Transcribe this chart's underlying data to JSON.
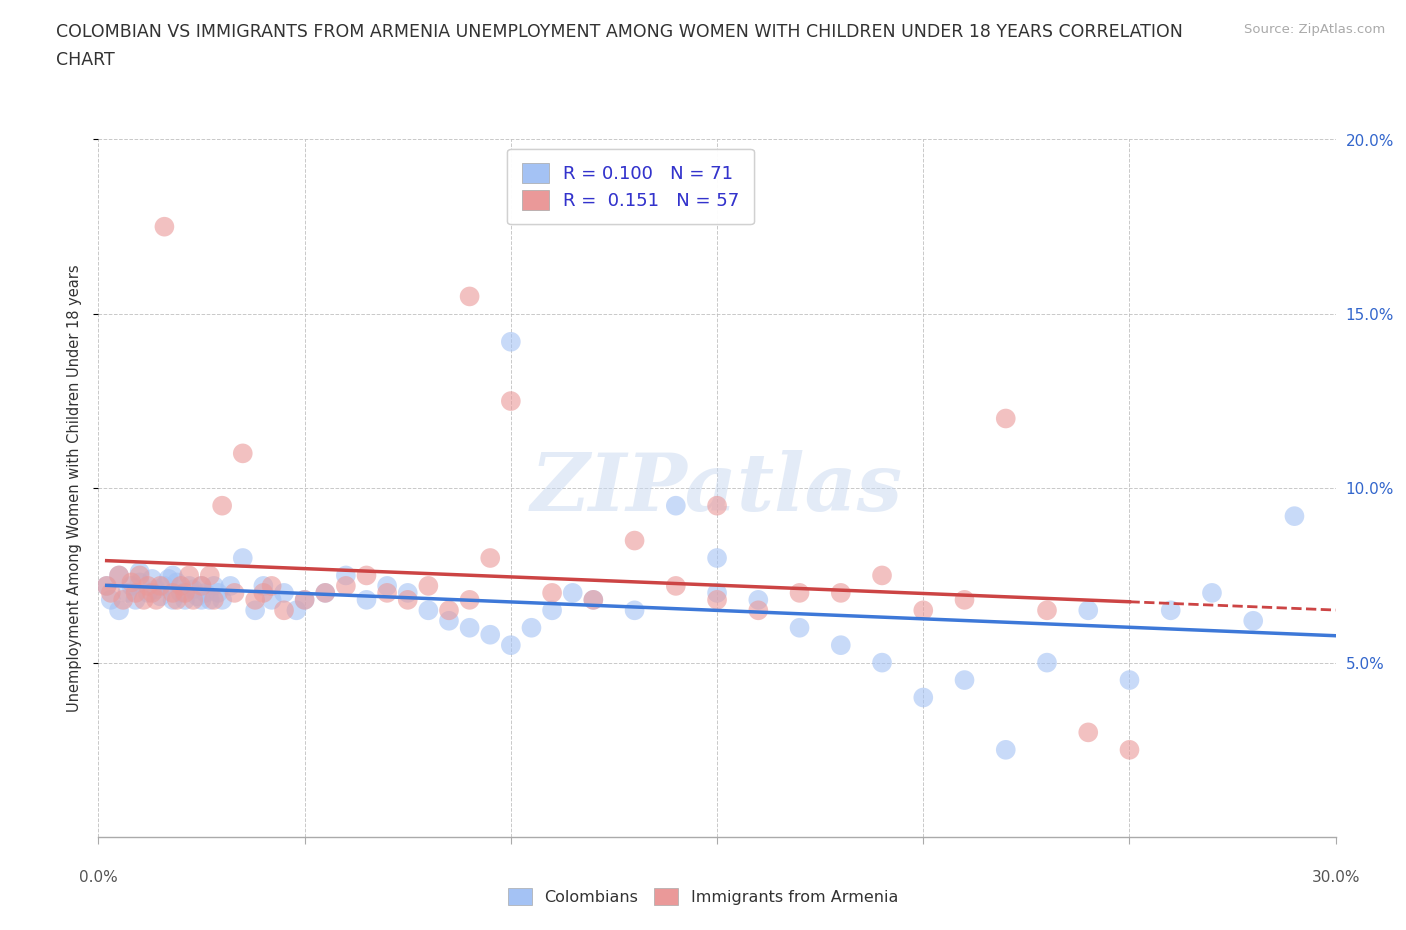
{
  "title_line1": "COLOMBIAN VS IMMIGRANTS FROM ARMENIA UNEMPLOYMENT AMONG WOMEN WITH CHILDREN UNDER 18 YEARS CORRELATION",
  "title_line2": "CHART",
  "source_text": "Source: ZipAtlas.com",
  "ylabel": "Unemployment Among Women with Children Under 18 years",
  "xlim": [
    0.0,
    0.3
  ],
  "ylim": [
    0.0,
    0.2
  ],
  "xtick_vals": [
    0.0,
    0.05,
    0.1,
    0.15,
    0.2,
    0.25,
    0.3
  ],
  "ytick_vals": [
    0.05,
    0.1,
    0.15,
    0.2
  ],
  "colombian_color": "#a4c2f4",
  "armenian_color": "#ea9999",
  "colombian_line_color": "#3d78d8",
  "armenian_line_color": "#cc4444",
  "R_colombian": 0.1,
  "N_colombian": 71,
  "R_armenian": 0.151,
  "N_armenian": 57,
  "legend_label_colombian": "Colombians",
  "legend_label_armenian": "Immigrants from Armenia",
  "watermark": "ZIPatlas",
  "background_color": "#ffffff",
  "grid_color": "#bbbbbb",
  "colombian_x": [
    0.002,
    0.003,
    0.005,
    0.005,
    0.007,
    0.008,
    0.009,
    0.01,
    0.01,
    0.012,
    0.013,
    0.014,
    0.015,
    0.016,
    0.017,
    0.018,
    0.018,
    0.019,
    0.02,
    0.021,
    0.022,
    0.023,
    0.024,
    0.025,
    0.025,
    0.026,
    0.027,
    0.028,
    0.029,
    0.03,
    0.032,
    0.035,
    0.038,
    0.04,
    0.042,
    0.045,
    0.048,
    0.05,
    0.055,
    0.06,
    0.065,
    0.07,
    0.075,
    0.08,
    0.085,
    0.09,
    0.095,
    0.1,
    0.105,
    0.11,
    0.115,
    0.12,
    0.13,
    0.14,
    0.15,
    0.16,
    0.17,
    0.18,
    0.19,
    0.2,
    0.21,
    0.22,
    0.23,
    0.24,
    0.25,
    0.26,
    0.27,
    0.28,
    0.29,
    0.15,
    0.1
  ],
  "colombian_y": [
    0.072,
    0.068,
    0.075,
    0.065,
    0.07,
    0.072,
    0.068,
    0.073,
    0.076,
    0.07,
    0.074,
    0.071,
    0.069,
    0.072,
    0.074,
    0.068,
    0.075,
    0.073,
    0.07,
    0.068,
    0.072,
    0.071,
    0.069,
    0.068,
    0.072,
    0.07,
    0.068,
    0.072,
    0.07,
    0.068,
    0.072,
    0.08,
    0.065,
    0.072,
    0.068,
    0.07,
    0.065,
    0.068,
    0.07,
    0.075,
    0.068,
    0.072,
    0.07,
    0.065,
    0.062,
    0.06,
    0.058,
    0.055,
    0.06,
    0.065,
    0.07,
    0.068,
    0.065,
    0.095,
    0.07,
    0.068,
    0.06,
    0.055,
    0.05,
    0.04,
    0.045,
    0.025,
    0.05,
    0.065,
    0.045,
    0.065,
    0.07,
    0.062,
    0.092,
    0.08,
    0.142
  ],
  "armenian_x": [
    0.002,
    0.003,
    0.005,
    0.006,
    0.008,
    0.009,
    0.01,
    0.011,
    0.012,
    0.013,
    0.014,
    0.015,
    0.016,
    0.018,
    0.019,
    0.02,
    0.021,
    0.022,
    0.023,
    0.025,
    0.027,
    0.028,
    0.03,
    0.033,
    0.035,
    0.038,
    0.04,
    0.042,
    0.045,
    0.05,
    0.055,
    0.06,
    0.065,
    0.07,
    0.075,
    0.08,
    0.085,
    0.09,
    0.095,
    0.1,
    0.11,
    0.12,
    0.13,
    0.14,
    0.15,
    0.16,
    0.17,
    0.18,
    0.19,
    0.2,
    0.21,
    0.22,
    0.23,
    0.24,
    0.25,
    0.15,
    0.09
  ],
  "armenian_y": [
    0.072,
    0.07,
    0.075,
    0.068,
    0.073,
    0.07,
    0.075,
    0.068,
    0.072,
    0.07,
    0.068,
    0.072,
    0.175,
    0.07,
    0.068,
    0.072,
    0.07,
    0.075,
    0.068,
    0.072,
    0.075,
    0.068,
    0.095,
    0.07,
    0.11,
    0.068,
    0.07,
    0.072,
    0.065,
    0.068,
    0.07,
    0.072,
    0.075,
    0.07,
    0.068,
    0.072,
    0.065,
    0.068,
    0.08,
    0.125,
    0.07,
    0.068,
    0.085,
    0.072,
    0.095,
    0.065,
    0.07,
    0.07,
    0.075,
    0.065,
    0.068,
    0.12,
    0.065,
    0.03,
    0.025,
    0.068,
    0.155
  ]
}
